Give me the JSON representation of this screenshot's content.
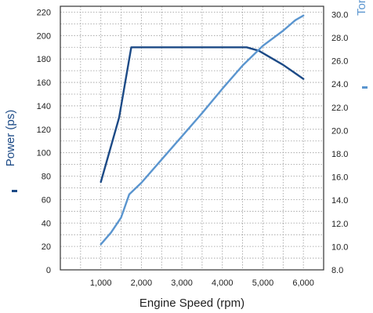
{
  "colors": {
    "power": "#1c4a86",
    "torque": "#5a95cf"
  },
  "chart_data": {
    "type": "line",
    "title": "",
    "xlabel": "Engine Speed (rpm)",
    "ylabel": "Power (ps)",
    "y2label": "Torque (kg·m)",
    "xlim": [
      0,
      6500
    ],
    "ylim": [
      0,
      225
    ],
    "y2lim": [
      8.0,
      30.7
    ],
    "grid": true,
    "x_ticks": [
      1000,
      2000,
      3000,
      4000,
      5000,
      6000
    ],
    "x_tick_labels": [
      "1,000",
      "2,000",
      "3,000",
      "4,000",
      "5,000",
      "6,000"
    ],
    "y_ticks": [
      0,
      20,
      40,
      60,
      80,
      100,
      120,
      140,
      160,
      180,
      200,
      220
    ],
    "y_tick_labels": [
      "0",
      "20",
      "40",
      "60",
      "80",
      "100",
      "120",
      "140",
      "160",
      "180",
      "200",
      "220"
    ],
    "y2_ticks": [
      8,
      10,
      12,
      14,
      16,
      18,
      20,
      22,
      24,
      26,
      28,
      30
    ],
    "y2_tick_labels": [
      "8.0",
      "10.0",
      "12.0",
      "14.0",
      "16.0",
      "18.0",
      "20.0",
      "22.0",
      "24.0",
      "26.0",
      "28.0",
      "30.0"
    ],
    "series": [
      {
        "name": "Power (ps)",
        "axis": "left",
        "color": "#1c4a86",
        "x": [
          1000,
          1450,
          1750,
          4600,
          4900,
          5500,
          6000
        ],
        "values": [
          75,
          130,
          190,
          190,
          187,
          175,
          163
        ]
      },
      {
        "name": "Torque (kg·m)",
        "axis": "right",
        "color": "#5a95cf",
        "x": [
          1000,
          1250,
          1500,
          1700,
          2000,
          2500,
          3000,
          3500,
          4000,
          4500,
          5000,
          5500,
          5800,
          6000
        ],
        "values": [
          10.2,
          11.2,
          12.5,
          14.5,
          15.5,
          17.5,
          19.5,
          21.5,
          23.6,
          25.6,
          27.3,
          28.6,
          29.5,
          29.9
        ]
      }
    ]
  }
}
